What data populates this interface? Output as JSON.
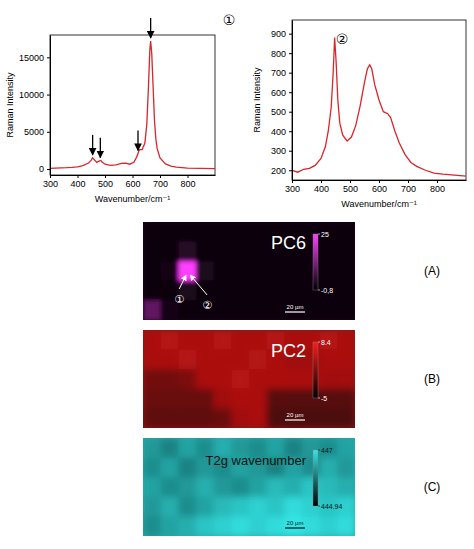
{
  "chart_data": [
    {
      "type": "line",
      "annotation": "①",
      "x_label": "Wavenumber/cm⁻¹",
      "y_label": "Raman Intensity",
      "x": [
        300,
        320,
        340,
        360,
        380,
        400,
        420,
        440,
        450,
        455,
        460,
        470,
        480,
        485,
        490,
        500,
        520,
        540,
        560,
        575,
        590,
        605,
        615,
        625,
        635,
        645,
        652,
        658,
        663,
        666,
        670,
        675,
        680,
        685,
        690,
        700,
        720,
        740,
        760,
        800,
        850,
        900
      ],
      "series": [
        {
          "color": "#d9262b",
          "values": [
            100,
            120,
            150,
            180,
            230,
            300,
            450,
            800,
            1200,
            1500,
            1300,
            900,
            1100,
            1150,
            900,
            650,
            500,
            550,
            750,
            800,
            650,
            900,
            1600,
            2600,
            2600,
            3500,
            6000,
            11000,
            16000,
            17200,
            15500,
            11000,
            6500,
            4000,
            2700,
            1500,
            700,
            400,
            250,
            130,
            80,
            60
          ]
        }
      ],
      "xlim": [
        300,
        900
      ],
      "ylim": [
        -800,
        18000
      ],
      "xticks": [
        300,
        400,
        500,
        600,
        700,
        800
      ],
      "yticks": [
        0,
        5000,
        10000,
        15000
      ],
      "arrows": [
        455,
        483,
        620,
        666
      ],
      "grid": false
    },
    {
      "type": "line",
      "annotation": "②",
      "x_label": "Wavenumber/cm⁻¹",
      "y_label": "Raman Intensity",
      "x": [
        300,
        320,
        340,
        360,
        380,
        400,
        415,
        425,
        435,
        442,
        447,
        452,
        458,
        465,
        475,
        490,
        505,
        520,
        535,
        550,
        560,
        568,
        575,
        585,
        600,
        615,
        630,
        640,
        655,
        670,
        690,
        710,
        730,
        760,
        790,
        820,
        860,
        900
      ],
      "series": [
        {
          "color": "#d9262b",
          "values": [
            200,
            190,
            205,
            210,
            225,
            260,
            320,
            400,
            520,
            700,
            880,
            760,
            560,
            440,
            380,
            350,
            370,
            430,
            530,
            650,
            720,
            740,
            720,
            640,
            560,
            500,
            490,
            470,
            400,
            340,
            280,
            240,
            220,
            200,
            185,
            180,
            175,
            170
          ]
        }
      ],
      "xlim": [
        300,
        900
      ],
      "ylim": [
        150,
        970
      ],
      "xticks": [
        300,
        400,
        500,
        600,
        700,
        800
      ],
      "yticks": [
        200,
        300,
        400,
        500,
        600,
        700,
        800,
        900
      ],
      "grid": false
    },
    {
      "type": "heatmap",
      "title": "PC6",
      "panel": "(A)",
      "color": "#ff40ff",
      "scale_bar": "20 µm",
      "cells": [
        [
          0.5,
          0.8,
          0.6,
          0.4,
          0.7,
          0.5,
          0.6,
          0.4,
          0.5,
          0.6,
          0.5,
          0.4
        ],
        [
          0.6,
          0.5,
          3,
          0.6,
          0.4,
          0.5,
          0.7,
          0.5,
          0.4,
          0.6,
          0.5,
          0.6
        ],
        [
          0.4,
          1,
          25,
          2,
          0.5,
          0.6,
          0.4,
          0.5,
          0.6,
          0.5,
          0.4,
          0.5
        ],
        [
          0.7,
          0.5,
          2,
          0.5,
          0.6,
          0.4,
          0.5,
          0.6,
          0.5,
          0.4,
          0.6,
          0.5
        ],
        [
          9,
          1.5,
          0.5,
          0.4,
          0.5,
          0.6,
          0.5,
          0.4,
          0.6,
          0.5,
          0.5,
          0.4
        ]
      ],
      "colorbar": {
        "range": [
          -0.8,
          25
        ],
        "ticks": [
          25,
          {
            "value": -0.8,
            "label": "-0,8"
          }
        ]
      },
      "markers": [
        {
          "text": "①",
          "x": 2.5,
          "y": 2.5
        },
        {
          "text": "②",
          "x": 2.5,
          "y": 2.5
        }
      ]
    },
    {
      "type": "heatmap",
      "title": "PC2",
      "panel": "(B)",
      "color": "#ff1a1a",
      "scale_bar": "20 µm",
      "cells": [
        [
          4,
          4.5,
          4,
          4,
          4.5,
          4,
          4,
          4.5,
          4,
          4,
          4.5,
          4
        ],
        [
          4,
          4,
          4.5,
          4,
          4,
          4,
          4.5,
          4,
          3.5,
          3.5,
          4,
          4
        ],
        [
          1,
          1,
          1.5,
          4,
          4,
          4.5,
          4,
          4,
          4,
          4,
          3.5,
          3.5
        ],
        [
          0.5,
          0.5,
          0.5,
          0.5,
          3.5,
          4,
          4,
          -0.5,
          -0.5,
          -0.5,
          -0.5,
          -0.5
        ],
        [
          0,
          0,
          0,
          0,
          0.5,
          3.5,
          4,
          -1,
          -1,
          -1,
          -1,
          -1
        ]
      ],
      "colorbar": {
        "range": [
          -5,
          8.4
        ],
        "ticks": [
          8.4,
          -5
        ]
      }
    },
    {
      "type": "heatmap",
      "title": "T2g wavenumber",
      "panel": "(C)",
      "color": "#33e6e6",
      "scale_bar": "20 µm",
      "cells": [
        [
          446.3,
          446.1,
          446.4,
          446.2,
          446.5,
          446.3,
          446.2,
          446.4,
          446.1,
          446.3,
          446.2,
          446.4
        ],
        [
          446.2,
          446.4,
          446.1,
          446.3,
          446.2,
          446.4,
          446.3,
          446.1,
          446.4,
          446.2,
          446.5,
          446.3
        ],
        [
          446.4,
          446.2,
          446.3,
          446.5,
          446.3,
          446.2,
          446.4,
          446.6,
          446.5,
          446.7,
          446.6,
          446.5
        ],
        [
          446.3,
          446.5,
          446.2,
          446.4,
          446.6,
          446.7,
          446.8,
          446.7,
          446.9,
          446.8,
          446.7,
          446.8
        ],
        [
          446.2,
          446.4,
          446.5,
          446.7,
          446.8,
          446.9,
          446.8,
          446.9,
          447,
          446.9,
          446.8,
          446.9
        ]
      ],
      "colorbar": {
        "range": [
          444.94,
          447
        ],
        "ticks": [
          447,
          444.94
        ]
      }
    }
  ]
}
